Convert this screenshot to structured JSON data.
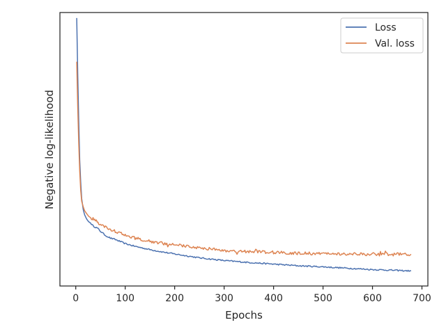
{
  "chart_data": {
    "type": "line",
    "title": "",
    "xlabel": "Epochs",
    "ylabel": "Negative log-likelihood",
    "xlim": [
      -32,
      712
    ],
    "ylim": [
      0,
      100
    ],
    "xticks": [
      0,
      100,
      200,
      300,
      400,
      500,
      600,
      700
    ],
    "yticks_shown": false,
    "grid": false,
    "legend_position": "top-right",
    "colors": {
      "Loss": "#4c72b0",
      "Val. loss": "#dd8452"
    },
    "series": [
      {
        "name": "Loss",
        "x": [
          2,
          4,
          6,
          8,
          10,
          12,
          15,
          18,
          22,
          26,
          30,
          35,
          40,
          45,
          50,
          60,
          70,
          80,
          100,
          120,
          150,
          180,
          200,
          250,
          300,
          350,
          400,
          450,
          500,
          550,
          600,
          650,
          678
        ],
        "y": [
          98,
          78,
          60,
          46,
          38,
          32,
          28,
          26,
          24.5,
          23.5,
          23,
          22,
          21.5,
          21,
          20,
          18.5,
          17.5,
          17,
          15.5,
          14.5,
          13.3,
          12.3,
          11.7,
          10.3,
          9.3,
          8.6,
          8.0,
          7.4,
          7.0,
          6.5,
          6.0,
          5.7,
          5.5
        ]
      },
      {
        "name": "Val. loss",
        "x": [
          2,
          4,
          6,
          8,
          10,
          12,
          15,
          18,
          22,
          26,
          30,
          35,
          40,
          45,
          50,
          60,
          70,
          80,
          100,
          120,
          150,
          180,
          200,
          250,
          300,
          350,
          400,
          450,
          500,
          550,
          600,
          650,
          678
        ],
        "y": [
          82,
          66,
          52,
          42,
          35,
          31,
          29,
          27.5,
          26.5,
          25.5,
          25,
          24.5,
          24,
          23,
          22.5,
          21.5,
          20.5,
          20,
          18.5,
          17.5,
          16.3,
          15.5,
          15,
          14,
          13,
          12.6,
          12.3,
          12,
          11.8,
          11.7,
          11.7,
          11.6,
          11.6
        ]
      }
    ]
  }
}
